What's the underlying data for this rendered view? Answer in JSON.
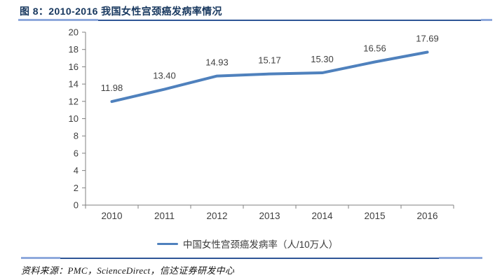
{
  "header": {
    "title": "图 8：2010-2016 我国女性宫颈癌发病率情况"
  },
  "chart_data": {
    "type": "line",
    "title": "图 8：2010-2016 我国女性宫颈癌发病率情况",
    "categories": [
      "2010",
      "2011",
      "2012",
      "2013",
      "2014",
      "2015",
      "2016"
    ],
    "series": [
      {
        "name": "中国女性宫颈癌发病率（人/10万人）",
        "values": [
          11.98,
          13.4,
          14.93,
          15.17,
          15.3,
          16.56,
          17.69
        ]
      }
    ],
    "xlabel": "",
    "ylabel": "",
    "ylim": [
      0,
      20
    ],
    "ytick_step": 2,
    "grid": false,
    "legend_position": "bottom",
    "data_labels_shown": true
  },
  "legend": {
    "label": "中国女性宫颈癌发病率（人/10万人）"
  },
  "footer": {
    "source": "资料来源：PMC，ScienceDirect，信达证券研发中心"
  },
  "colors": {
    "title": "#17375E",
    "series_line": "#4F81BD",
    "axis": "#808080",
    "tick_text": "#3F3F3F",
    "data_label_text": "#404040",
    "rule_dark": "#2E5596",
    "rule_light": "#8EA9DC"
  }
}
